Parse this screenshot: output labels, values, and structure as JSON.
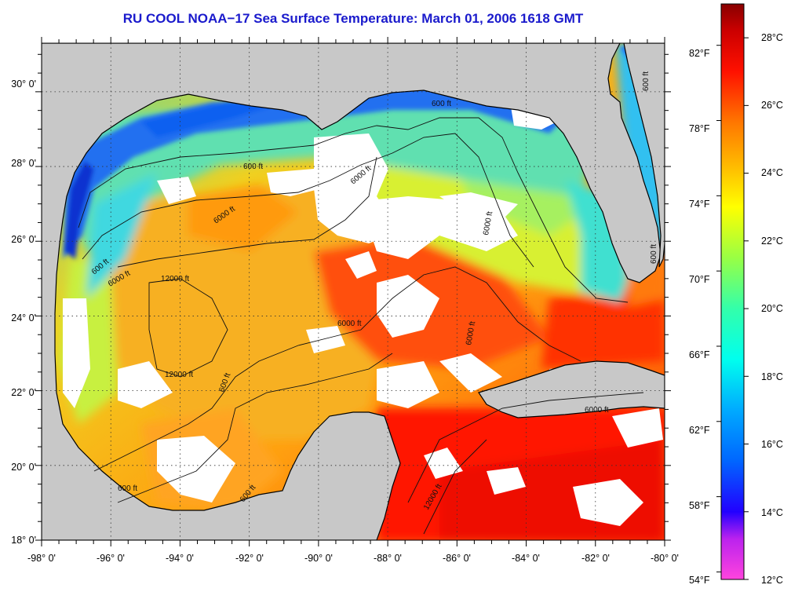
{
  "title": "RU COOL  NOAA−17  Sea Surface Temperature:  March 01, 2006 1618 GMT",
  "axes": {
    "lon_labels": [
      "-98° 0'",
      "-96° 0'",
      "-94° 0'",
      "-92° 0'",
      "-90° 0'",
      "-88° 0'",
      "-86° 0'",
      "-84° 0'",
      "-82° 0'",
      "-80° 0'"
    ],
    "lat_labels": [
      "30° 0'",
      "28° 0'",
      "26° 0'",
      "24° 0'",
      "22° 0'",
      "20° 0'",
      "18° 0'"
    ],
    "lon_range": [
      -98,
      -80
    ],
    "lat_range": [
      18,
      31.3
    ]
  },
  "contours": {
    "labels": [
      "600 ft",
      "600 ft",
      "600 ft",
      "600 ft",
      "600 ft",
      "600 ft",
      "600 ft",
      "600 ft",
      "6000 ft",
      "6000 ft",
      "6000 ft",
      "6000 ft",
      "6000 ft",
      "6000 ft",
      "6000 ft",
      "12000 ft",
      "12000 ft",
      "12000 ft"
    ]
  },
  "colorbar": {
    "celsius": [
      "28°C",
      "26°C",
      "24°C",
      "22°C",
      "20°C",
      "18°C",
      "16°C",
      "14°C",
      "12°C"
    ],
    "fahrenheit": [
      "82°F",
      "78°F",
      "74°F",
      "70°F",
      "66°F",
      "62°F",
      "58°F",
      "54°F"
    ],
    "range_c": [
      12,
      29
    ],
    "stops": [
      {
        "c": 12,
        "color": "#ff44dd"
      },
      {
        "c": 13.2,
        "color": "#bb22ee"
      },
      {
        "c": 14,
        "color": "#2200ff"
      },
      {
        "c": 15.5,
        "color": "#0066ff"
      },
      {
        "c": 17,
        "color": "#00aaff"
      },
      {
        "c": 18.5,
        "color": "#00ffee"
      },
      {
        "c": 20,
        "color": "#33ffaa"
      },
      {
        "c": 21.5,
        "color": "#99ff44"
      },
      {
        "c": 23,
        "color": "#ffff00"
      },
      {
        "c": 24.2,
        "color": "#ffbb00"
      },
      {
        "c": 25.5,
        "color": "#ff7700"
      },
      {
        "c": 27,
        "color": "#ff1100"
      },
      {
        "c": 28.2,
        "color": "#cc0000"
      },
      {
        "c": 29,
        "color": "#880000"
      }
    ]
  },
  "colors": {
    "land": "#c8c8c8",
    "cloud": "#ffffff",
    "coast": "#000000",
    "title": "#1a1acc"
  }
}
